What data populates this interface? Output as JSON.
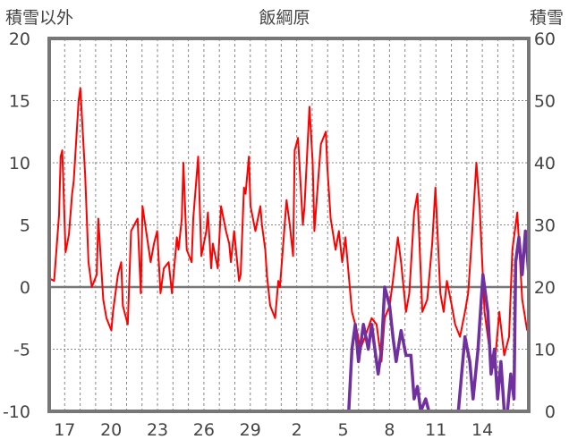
{
  "chart_data": {
    "type": "line",
    "title": "飯綱原",
    "left_axis_label": "積雪以外",
    "right_axis_label": "積雪",
    "left_ylim": [
      -10,
      20
    ],
    "left_yticks": [
      -10,
      -5,
      0,
      5,
      10,
      15,
      20
    ],
    "right_ylim": [
      0,
      60
    ],
    "right_yticks": [
      0,
      10,
      20,
      30,
      40,
      50,
      60
    ],
    "xlim": [
      15.0,
      44.3
    ],
    "x_tick_labels": [
      "17",
      "20",
      "23",
      "26",
      "29",
      "2",
      "5",
      "8",
      "11",
      "14"
    ],
    "grid": true,
    "colors": {
      "temperature": "#ff0000",
      "snow_depth": "#7030a0",
      "zero_line": "#777777",
      "frame": "#777777",
      "grid": "#888888"
    },
    "series": [
      {
        "axis": "left",
        "x": [
          15.0,
          15.3,
          15.6,
          15.7,
          15.8,
          16.0,
          16.2,
          16.4,
          16.5,
          16.8,
          16.9,
          17.2,
          17.4,
          17.6,
          17.9,
          18.0,
          18.3,
          18.5,
          18.8,
          18.9,
          19.2,
          19.4,
          19.5,
          19.8,
          20.0,
          20.4,
          20.6,
          20.7,
          21.2,
          21.4,
          21.6,
          21.8,
          22.0,
          22.3,
          22.5,
          22.8,
          22.9,
          23.1,
          23.2,
          23.4,
          23.7,
          23.8,
          24.1,
          24.3,
          24.6,
          24.7,
          24.9,
          25.0,
          25.3,
          25.5,
          25.8,
          26.0,
          26.1,
          26.3,
          26.6,
          26.7,
          26.9,
          27.0,
          27.2,
          27.3,
          27.6,
          27.9,
          28.0,
          28.2,
          28.3,
          28.5,
          28.8,
          29.0,
          29.1,
          29.3,
          29.5,
          29.7,
          29.9,
          30.0,
          30.2,
          30.5,
          30.6,
          30.9,
          31.1,
          31.2,
          31.4,
          31.6,
          31.9,
          32.0,
          32.2,
          32.5,
          32.7,
          32.9,
          33.1,
          33.5,
          33.8,
          34.0,
          34.3,
          34.7,
          35.0,
          35.3,
          35.5,
          35.8,
          36.0,
          36.3,
          36.5,
          36.8,
          37.0,
          37.3,
          37.5,
          37.8,
          38.1,
          38.4,
          38.6,
          38.9,
          39.1,
          39.3,
          39.6,
          39.8,
          40.1,
          40.4,
          40.6,
          40.8,
          41.1,
          41.3,
          41.6,
          41.9,
          42.2,
          42.5,
          42.8,
          43.1,
          43.3,
          43.6,
          43.9,
          44.2
        ],
        "y": [
          0.7,
          0.5,
          5.8,
          10.5,
          11.0,
          2.8,
          4.2,
          7.5,
          8.5,
          15.0,
          16.0,
          9.0,
          2.0,
          0.0,
          1.0,
          5.5,
          -1.0,
          -2.5,
          -3.5,
          -2.0,
          1.0,
          2.0,
          -1.5,
          -3.0,
          4.5,
          5.5,
          -0.5,
          6.5,
          2.0,
          3.5,
          4.5,
          -0.5,
          1.5,
          2.0,
          -0.5,
          4.0,
          3.0,
          5.5,
          10.0,
          3.0,
          2.0,
          5.5,
          10.5,
          2.5,
          4.5,
          6.0,
          1.5,
          3.5,
          1.5,
          6.5,
          4.5,
          3.5,
          2.0,
          4.5,
          0.5,
          1.0,
          8.0,
          7.5,
          10.5,
          6.5,
          4.5,
          6.5,
          5.0,
          3.0,
          1.0,
          -1.5,
          -2.5,
          0.5,
          0.0,
          3.5,
          7.0,
          5.0,
          2.5,
          11.0,
          12.0,
          5.0,
          6.5,
          14.5,
          10.0,
          4.5,
          8.0,
          11.5,
          12.5,
          9.5,
          5.5,
          3.0,
          4.5,
          2.0,
          4.0,
          -2.0,
          -3.5,
          -5.0,
          -4.0,
          -2.5,
          -3.0,
          -6.0,
          -2.5,
          -1.5,
          0.5,
          4.0,
          2.0,
          -2.0,
          -0.5,
          6.0,
          7.5,
          -2.0,
          -1.0,
          3.5,
          8.0,
          -0.5,
          -2.0,
          0.5,
          -1.5,
          -3.0,
          -4.0,
          -2.0,
          -0.5,
          3.5,
          10.0,
          6.5,
          -2.0,
          -5.0,
          -6.5,
          -2.0,
          -5.5,
          -4.0,
          3.0,
          6.0,
          -1.0,
          -3.5
        ]
      },
      {
        "axis": "right",
        "x": [
          15.0,
          33.3,
          33.5,
          33.7,
          33.9,
          34.2,
          34.5,
          34.7,
          34.9,
          35.1,
          35.3,
          35.5,
          35.8,
          36.0,
          36.2,
          36.5,
          36.8,
          37.1,
          37.3,
          37.5,
          37.7,
          38.0,
          38.2,
          38.5,
          39.0,
          40.0,
          40.4,
          40.7,
          40.9,
          41.2,
          41.5,
          41.8,
          42.0,
          42.2,
          42.4,
          42.6,
          42.8,
          43.0,
          43.2,
          43.4,
          43.5,
          43.7,
          43.9,
          44.1,
          44.3
        ],
        "y": [
          0,
          0,
          10,
          14,
          8,
          14,
          10,
          14,
          10,
          6,
          10,
          20,
          17,
          12,
          8,
          13,
          9,
          9,
          2,
          4,
          0,
          2,
          0,
          0,
          0,
          0,
          12,
          8,
          2,
          10,
          22,
          16,
          6,
          10,
          2,
          8,
          0,
          0,
          6,
          2,
          24,
          28,
          22,
          29,
          22
        ]
      }
    ]
  }
}
